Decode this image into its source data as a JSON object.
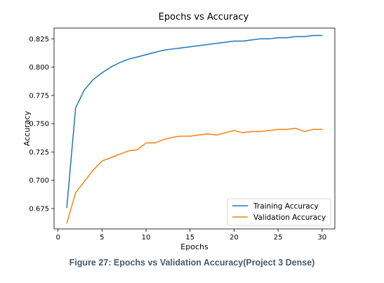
{
  "chart_data": {
    "type": "line",
    "title": "Epochs vs Accuracy",
    "xlabel": "Epochs",
    "ylabel": "Accuracy",
    "xlim": [
      -0.45,
      31.45
    ],
    "ylim": [
      0.657,
      0.8345
    ],
    "xticks": [
      0,
      5,
      10,
      15,
      20,
      25,
      30
    ],
    "yticks": [
      0.675,
      0.7,
      0.725,
      0.75,
      0.775,
      0.8,
      0.825
    ],
    "ytick_labels": [
      "0.675",
      "0.700",
      "0.725",
      "0.750",
      "0.775",
      "0.800",
      "0.825"
    ],
    "legend_position": "lower-right",
    "grid": false,
    "x": [
      1,
      2,
      3,
      4,
      5,
      6,
      7,
      8,
      9,
      10,
      11,
      12,
      13,
      14,
      15,
      16,
      17,
      18,
      19,
      20,
      21,
      22,
      23,
      24,
      25,
      26,
      27,
      28,
      29,
      30
    ],
    "series": [
      {
        "name": "Training Accuracy",
        "color": "#1f77b4",
        "values": [
          0.676,
          0.764,
          0.78,
          0.789,
          0.795,
          0.8,
          0.804,
          0.807,
          0.809,
          0.811,
          0.813,
          0.815,
          0.816,
          0.817,
          0.818,
          0.819,
          0.82,
          0.821,
          0.822,
          0.823,
          0.823,
          0.824,
          0.825,
          0.825,
          0.826,
          0.826,
          0.827,
          0.827,
          0.828,
          0.828
        ]
      },
      {
        "name": "Validation Accuracy",
        "color": "#ff7f0e",
        "values": [
          0.662,
          0.689,
          0.699,
          0.709,
          0.717,
          0.72,
          0.723,
          0.726,
          0.727,
          0.733,
          0.733,
          0.736,
          0.738,
          0.739,
          0.739,
          0.74,
          0.741,
          0.74,
          0.742,
          0.744,
          0.742,
          0.743,
          0.743,
          0.744,
          0.745,
          0.745,
          0.746,
          0.743,
          0.745,
          0.745
        ]
      }
    ]
  },
  "caption": "Figure 27: Epochs vs Validation Accuracy(Project 3 Dense)"
}
